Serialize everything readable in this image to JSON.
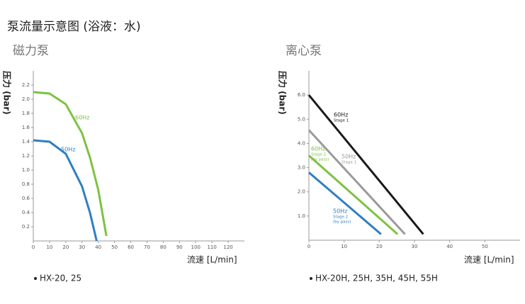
{
  "title": "泵流量示意图 (浴液：水)",
  "chart_data": [
    {
      "type": "line",
      "title": "磁力泵",
      "y_label": "压力 (bar)",
      "x_label": "流速 [L/min]",
      "note": "HX-20, 25",
      "xlim": [
        0,
        130
      ],
      "ylim": [
        0,
        2.4
      ],
      "xticks": [
        0,
        10,
        20,
        30,
        40,
        50,
        60,
        70,
        80,
        90,
        100,
        110,
        120
      ],
      "yticks": [
        0.2,
        0.4,
        0.6,
        0.8,
        {
          "value": 1,
          "label": "1.0"
        },
        1.2,
        1.4,
        1.6,
        1.8,
        {
          "value": 2,
          "label": "2.0"
        },
        2.2
      ],
      "series": [
        {
          "name": "60Hz",
          "color": "#7dc242",
          "x": [
            0,
            10,
            20,
            30,
            35,
            40,
            45
          ],
          "values": [
            2.1,
            2.08,
            1.93,
            1.52,
            1.17,
            0.72,
            0.07
          ]
        },
        {
          "name": "50Hz",
          "color": "#2f7fc1",
          "x": [
            0,
            10,
            20,
            30,
            35,
            39
          ],
          "values": [
            1.42,
            1.4,
            1.23,
            0.77,
            0.39,
            0
          ]
        }
      ]
    },
    {
      "type": "line",
      "title": "离心泵",
      "y_label": "压力 (bar)",
      "x_label": "流速 [L/min]",
      "note": "HX-20H, 25H, 35H, 45H, 55H",
      "xlim": [
        0,
        60
      ],
      "ylim": [
        0,
        7
      ],
      "xticks": [
        0,
        10,
        20,
        30,
        40,
        50
      ],
      "yticks": [
        {
          "value": 1,
          "label": "1.0"
        },
        {
          "value": 2,
          "label": "2.0"
        },
        {
          "value": 3,
          "label": "3.0"
        },
        {
          "value": 4,
          "label": "4.0"
        },
        {
          "value": 5,
          "label": "5.0"
        },
        {
          "value": 6,
          "label": "6.0"
        }
      ],
      "series": [
        {
          "name": "60Hz",
          "sublabel": [
            "Stage 1"
          ],
          "color": "#1a1a1a",
          "x": [
            0,
            32.5
          ],
          "values": [
            6.0,
            0.25
          ]
        },
        {
          "name": "50Hz",
          "sublabel": [
            "Stage 1"
          ],
          "color": "#9a9a9a",
          "x": [
            0,
            27.3
          ],
          "values": [
            4.55,
            0.25
          ]
        },
        {
          "name": "60Hz",
          "sublabel": [
            "Stage 2",
            "(by pass)"
          ],
          "color": "#7dc242",
          "x": [
            0,
            25.2
          ],
          "values": [
            3.5,
            0.25
          ]
        },
        {
          "name": "50Hz",
          "sublabel": [
            "Stage 2",
            "(by pass)"
          ],
          "color": "#2f7fc1",
          "x": [
            0,
            20.5
          ],
          "values": [
            2.8,
            0.25
          ]
        }
      ]
    }
  ]
}
